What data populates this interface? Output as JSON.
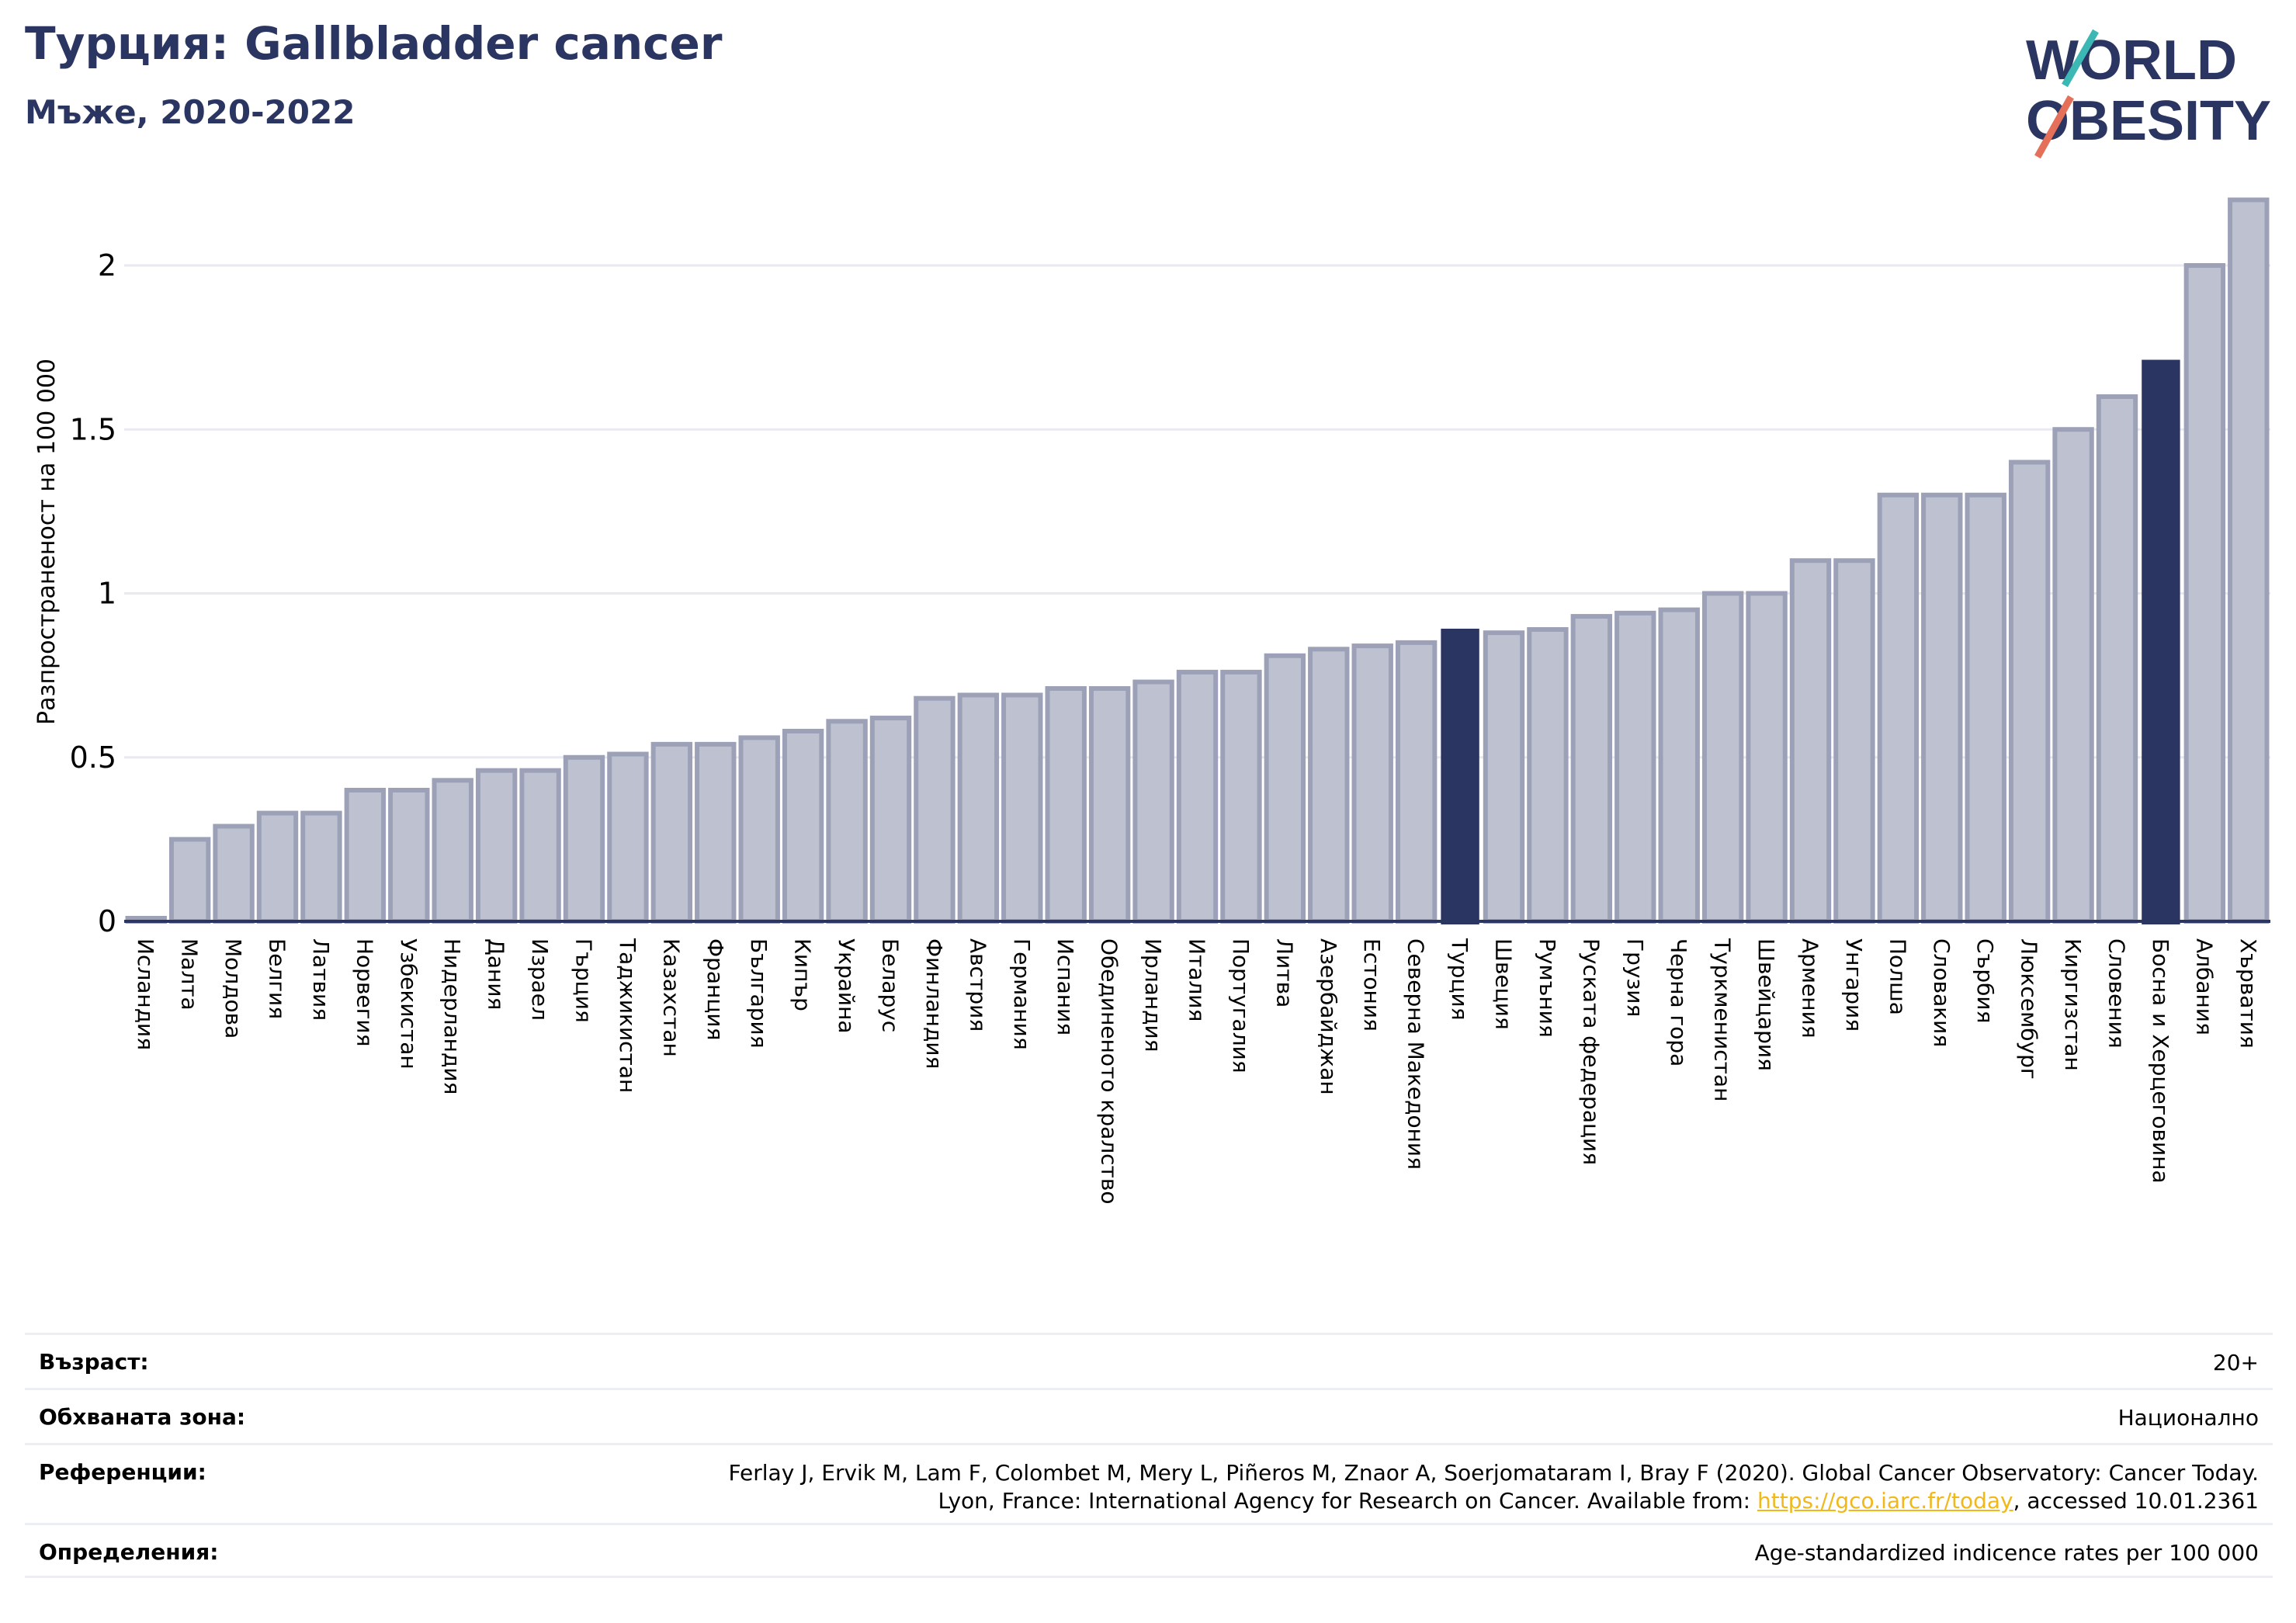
{
  "header": {
    "title": "Турция: Gallbladder cancer",
    "subtitle": "Мъже, 2020-2022"
  },
  "logo": {
    "line1": "WORLD",
    "line2": "OBESITY"
  },
  "colors": {
    "bar_default_fill": "#bec2d0",
    "bar_default_stroke": "#9ca1b8",
    "bar_highlight": "#2b3561",
    "grid": "#e8eaf0",
    "title": "#2b3561",
    "link": "#f0b81b",
    "logo_teal": "#3bb8b4",
    "logo_coral": "#e5705a"
  },
  "chart_data": {
    "type": "bar",
    "title": "Турция: Gallbladder cancer",
    "subtitle": "Мъже, 2020-2022",
    "xlabel": "",
    "ylabel": "Разпространеност  на 100 000",
    "ylim": [
      0,
      2.2
    ],
    "yticks": [
      0,
      0.5,
      1,
      1.5,
      2
    ],
    "ytick_labels": [
      "0",
      "0.5",
      "1",
      "1.5",
      "2"
    ],
    "grid": true,
    "categories": [
      "Исландия",
      "Малта",
      "Молдова",
      "Белгия",
      "Латвия",
      "Норвегия",
      "Узбекистан",
      "Нидерландия",
      "Дания",
      "Израел",
      "Гърция",
      "Таджикистан",
      "Казахстан",
      "Франция",
      "България",
      "Кипър",
      "Украйна",
      "Беларус",
      "Финландия",
      "Австрия",
      "Германия",
      "Испания",
      "Обединеното кралство",
      "Ирландия",
      "Италия",
      "Португалия",
      "Литва",
      "Азербайджан",
      "Естония",
      "Северна Македония",
      "Турция",
      "Швеция",
      "Румъния",
      "Руската федерация",
      "Грузия",
      "Черна гора",
      "Туркменистан",
      "Швейцария",
      "Армения",
      "Унгария",
      "Полша",
      "Словакия",
      "Сърбия",
      "Люксембург",
      "Киргизстан",
      "Словения",
      "Босна и Херцеговина",
      "Албания",
      "Хърватия"
    ],
    "values": [
      0.0,
      0.25,
      0.29,
      0.33,
      0.33,
      0.4,
      0.4,
      0.43,
      0.46,
      0.46,
      0.5,
      0.51,
      0.54,
      0.54,
      0.56,
      0.58,
      0.61,
      0.62,
      0.68,
      0.69,
      0.69,
      0.71,
      0.71,
      0.73,
      0.76,
      0.76,
      0.81,
      0.83,
      0.84,
      0.85,
      0.89,
      0.88,
      0.89,
      0.93,
      0.94,
      0.95,
      1.0,
      1.0,
      1.1,
      1.1,
      1.3,
      1.3,
      1.3,
      1.4,
      1.5,
      1.6,
      1.71,
      2.0,
      2.2
    ],
    "highlight": [
      "Турция",
      "Босна и Херцеговина"
    ]
  },
  "meta": {
    "age_label": "Възраст:",
    "age_value": "20+",
    "coverage_label": "Обхваната зона:",
    "coverage_value": "Национално",
    "refs_label": "Референции:",
    "refs_line1": "Ferlay J, Ervik M, Lam F, Colombet M, Mery L, Piñeros M, Znaor A, Soerjomataram I, Bray F (2020). Global Cancer Observatory: Cancer Today.",
    "refs_line2_pre": "Lyon, France: International Agency for Research on Cancer. Available from: ",
    "refs_link": "https://gco.iarc.fr/today",
    "refs_line2_post": ", accessed 10.01.2361",
    "defs_label": "Определения:",
    "defs_value": "Age-standardized indicence rates per 100 000"
  }
}
